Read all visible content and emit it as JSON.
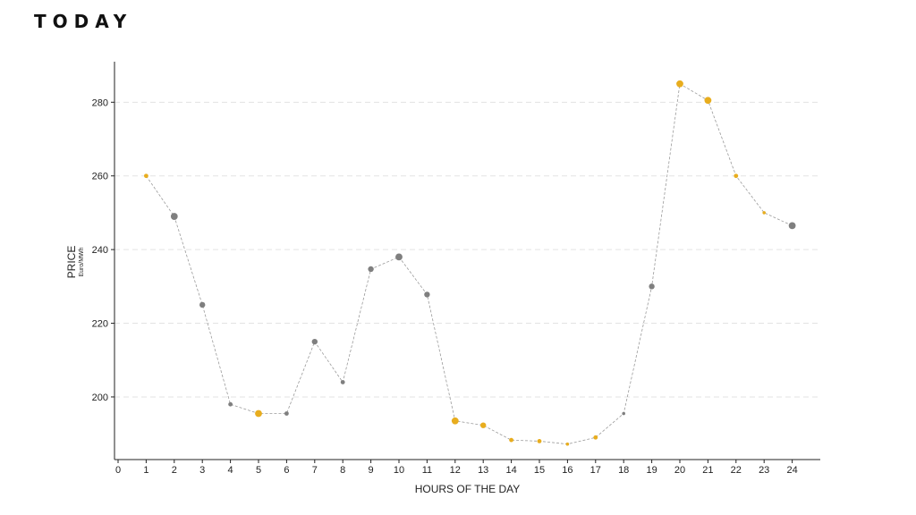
{
  "page": {
    "title": "TODAY"
  },
  "chart_data": {
    "type": "scatter",
    "title": "",
    "xlabel": "HOURS OF THE DAY",
    "ylabel": "PRICE",
    "ylabel_unit": "Euro/MWh",
    "xlim": [
      0,
      25
    ],
    "ylim": [
      183,
      291
    ],
    "x_ticks": [
      0,
      1,
      2,
      3,
      4,
      5,
      6,
      7,
      8,
      9,
      10,
      11,
      12,
      13,
      14,
      15,
      16,
      17,
      18,
      19,
      20,
      21,
      22,
      23,
      24
    ],
    "y_ticks": [
      200,
      220,
      240,
      260,
      280
    ],
    "grid": "horizontal-dashed",
    "connector_line": "dashed",
    "colors": {
      "highlight": "#e8ad1e",
      "normal": "#7f7f7f",
      "connector": "#9a9a9a",
      "grid": "#e3e3e3",
      "axis": "#222222"
    },
    "points": [
      {
        "x": 1,
        "y": 260,
        "group": "highlight",
        "size": "small"
      },
      {
        "x": 2,
        "y": 249,
        "group": "normal",
        "size": "large"
      },
      {
        "x": 3,
        "y": 225,
        "group": "normal",
        "size": "medium"
      },
      {
        "x": 4,
        "y": 198,
        "group": "normal",
        "size": "small"
      },
      {
        "x": 5,
        "y": 195.5,
        "group": "highlight",
        "size": "large"
      },
      {
        "x": 6,
        "y": 195.5,
        "group": "normal",
        "size": "small"
      },
      {
        "x": 7,
        "y": 215,
        "group": "normal",
        "size": "medium"
      },
      {
        "x": 8,
        "y": 204,
        "group": "normal",
        "size": "small"
      },
      {
        "x": 9,
        "y": 234.7,
        "group": "normal",
        "size": "medium"
      },
      {
        "x": 10,
        "y": 238,
        "group": "normal",
        "size": "large"
      },
      {
        "x": 11,
        "y": 227.8,
        "group": "normal",
        "size": "medium"
      },
      {
        "x": 12,
        "y": 193.5,
        "group": "highlight",
        "size": "large"
      },
      {
        "x": 13,
        "y": 192.3,
        "group": "highlight",
        "size": "medium"
      },
      {
        "x": 14,
        "y": 188.3,
        "group": "highlight",
        "size": "small"
      },
      {
        "x": 15,
        "y": 188,
        "group": "highlight",
        "size": "small"
      },
      {
        "x": 16,
        "y": 187.2,
        "group": "highlight",
        "size": "tiny"
      },
      {
        "x": 17,
        "y": 189,
        "group": "highlight",
        "size": "small"
      },
      {
        "x": 18,
        "y": 195.5,
        "group": "normal",
        "size": "tiny"
      },
      {
        "x": 19,
        "y": 230,
        "group": "normal",
        "size": "medium"
      },
      {
        "x": 20,
        "y": 285,
        "group": "highlight",
        "size": "large"
      },
      {
        "x": 21,
        "y": 280.5,
        "group": "highlight",
        "size": "large"
      },
      {
        "x": 22,
        "y": 260,
        "group": "highlight",
        "size": "small"
      },
      {
        "x": 23,
        "y": 250,
        "group": "highlight",
        "size": "tiny"
      },
      {
        "x": 24,
        "y": 246.5,
        "group": "normal",
        "size": "large"
      }
    ]
  }
}
